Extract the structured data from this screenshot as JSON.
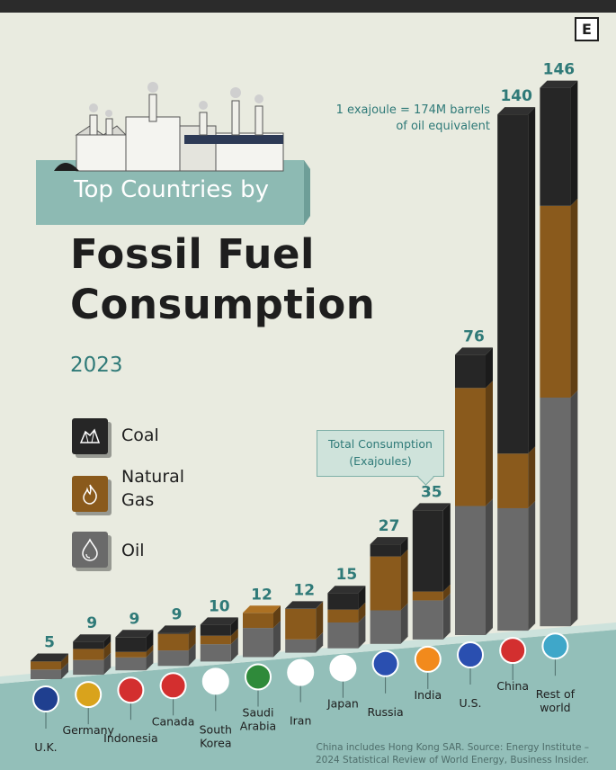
{
  "brand": {
    "logo_letter": "E"
  },
  "header": {
    "subtitle": "Top Countries by",
    "title_line1": "Fossil Fuel",
    "title_line2": "Consumption",
    "year": "2023"
  },
  "legend": [
    {
      "label": "Coal",
      "color": "#262626",
      "icon": "coal-icon"
    },
    {
      "label": "Natural\nGas",
      "color": "#8a5a1c",
      "icon": "flame-icon"
    },
    {
      "label": "Oil",
      "color": "#6a6a6a",
      "icon": "oil-drop-icon"
    }
  ],
  "note": {
    "line1": "1 exajoule = 174M barrels",
    "line2": "of oil equivalent"
  },
  "callout": {
    "line1": "Total Consumption",
    "line2": "(Exajoules)"
  },
  "source": {
    "line1": "China includes Hong Kong SAR. Source: Energy Institute –",
    "line2": "2024 Statistical Review of World Energy, Business Insider."
  },
  "colors": {
    "coal": "#262626",
    "gas": "#8a5a1c",
    "oil": "#6a6a6a",
    "accent": "#2f7a78",
    "floor": "#93bfb9"
  },
  "chart_data": {
    "type": "bar",
    "stacked": true,
    "title": "Top Countries by Fossil Fuel Consumption",
    "subtitle": "2023",
    "unit": "Exajoules",
    "categories": [
      "U.K.",
      "Germany",
      "Indonesia",
      "Canada",
      "South Korea",
      "Saudi Arabia",
      "Iran",
      "Japan",
      "Russia",
      "India",
      "U.S.",
      "China",
      "Rest of world"
    ],
    "flags": [
      "uk-flag-icon",
      "germany-flag-icon",
      "indonesia-flag-icon",
      "canada-flag-icon",
      "south-korea-flag-icon",
      "saudi-arabia-flag-icon",
      "iran-flag-icon",
      "japan-flag-icon",
      "russia-flag-icon",
      "india-flag-icon",
      "us-flag-icon",
      "china-flag-icon",
      "globe-icon"
    ],
    "totals": [
      5,
      9,
      9,
      9,
      10,
      12,
      12,
      15,
      27,
      35,
      76,
      140,
      146
    ],
    "series": [
      {
        "name": "Coal",
        "values": [
          0.2,
          2.0,
          4.0,
          0.3,
          3.0,
          0,
          0.1,
          4.5,
          3.3,
          22.0,
          9.0,
          92.0,
          32.0
        ]
      },
      {
        "name": "Natural Gas",
        "values": [
          2.2,
          3.0,
          1.5,
          4.5,
          2.3,
          4.1,
          8.3,
          3.5,
          14.6,
          2.4,
          32.0,
          14.8,
          52.0
        ]
      },
      {
        "name": "Oil",
        "values": [
          2.6,
          4.0,
          3.5,
          4.2,
          4.7,
          7.9,
          3.6,
          7.0,
          9.1,
          10.6,
          35.0,
          33.2,
          62.0
        ]
      }
    ],
    "legend": [
      "Coal",
      "Natural Gas",
      "Oil"
    ],
    "legend_position": "left",
    "grid": false
  }
}
